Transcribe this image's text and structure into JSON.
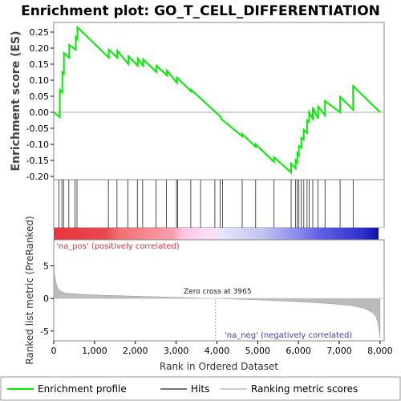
{
  "chart_data": {
    "type": "line",
    "title": "Enrichment plot: GO_T_CELL_DIFFERENTIATION",
    "top_panel": {
      "ylabel": "Enrichment score (ES)",
      "ylim": [
        -0.21,
        0.28
      ],
      "yticks": [
        "0.25",
        "0.20",
        "0.15",
        "0.10",
        "0.05",
        "0.00",
        "-0.05",
        "-0.10",
        "-0.15",
        "-0.20"
      ],
      "ytick_values": [
        0.25,
        0.2,
        0.15,
        0.1,
        0.05,
        0.0,
        -0.05,
        -0.1,
        -0.15,
        -0.2
      ],
      "xlim": [
        0,
        8100
      ],
      "series": [
        {
          "name": "Enrichment profile",
          "color": "#00ee00",
          "x": [
            0,
            150,
            150,
            210,
            210,
            250,
            250,
            380,
            380,
            540,
            540,
            580,
            580,
            1350,
            1350,
            1560,
            1560,
            1830,
            1830,
            2060,
            2060,
            2190,
            2190,
            2520,
            2520,
            2770,
            2770,
            3020,
            3020,
            3370,
            3370,
            4100,
            4100,
            4620,
            4620,
            4950,
            4950,
            5400,
            5400,
            5820,
            5820,
            5930,
            5930,
            5970,
            5970,
            6010,
            6010,
            6070,
            6070,
            6130,
            6130,
            6210,
            6210,
            6260,
            6260,
            6350,
            6350,
            6480,
            6480,
            6650,
            6650,
            7020,
            7020,
            7340,
            7340,
            8000
          ],
          "y": [
            0.0,
            -0.015,
            0.07,
            0.062,
            0.125,
            0.12,
            0.185,
            0.17,
            0.21,
            0.195,
            0.235,
            0.228,
            0.265,
            0.17,
            0.195,
            0.17,
            0.192,
            0.15,
            0.175,
            0.145,
            0.168,
            0.145,
            0.165,
            0.125,
            0.145,
            0.115,
            0.13,
            0.092,
            0.108,
            0.065,
            0.07,
            -0.015,
            -0.02,
            -0.075,
            -0.068,
            -0.108,
            -0.1,
            -0.155,
            -0.14,
            -0.188,
            -0.16,
            -0.175,
            -0.15,
            -0.158,
            -0.128,
            -0.135,
            -0.105,
            -0.11,
            -0.08,
            -0.085,
            -0.055,
            -0.065,
            -0.025,
            -0.03,
            0.0,
            -0.02,
            0.015,
            -0.02,
            0.018,
            -0.01,
            0.035,
            0.0,
            0.048,
            0.008,
            0.082,
            0.0
          ]
        }
      ]
    },
    "hits_panel": {
      "name": "Hits",
      "hit_positions": [
        130,
        200,
        240,
        370,
        520,
        570,
        1340,
        1550,
        1820,
        2050,
        2180,
        2510,
        2760,
        3010,
        3040,
        3360,
        3600,
        3950,
        4080,
        4140,
        4620,
        4950,
        5400,
        5820,
        5930,
        5970,
        6010,
        6070,
        6130,
        6210,
        6260,
        6350,
        6480,
        6650,
        7020,
        7340
      ]
    },
    "ranking_panel": {
      "ylabel": "Ranked list metric (PreRanked)",
      "xlabel": "Rank in Ordered Dataset",
      "ylim": [
        -6.5,
        9
      ],
      "yticks": [
        "5",
        "0",
        "-5"
      ],
      "ytick_values": [
        5,
        0,
        -5
      ],
      "xlim": [
        0,
        8100
      ],
      "xticks": [
        "0",
        "1,000",
        "2,000",
        "3,000",
        "4,000",
        "5,000",
        "6,000",
        "7,000",
        "8,000"
      ],
      "xtick_values": [
        0,
        1000,
        2000,
        3000,
        4000,
        5000,
        6000,
        7000,
        8000
      ],
      "zero_cross_label": "Zero cross at 3965",
      "zero_cross": 3965,
      "pos_label": "'na_pos' (positively correlated)",
      "neg_label": "'na_neg' (negatively correlated)",
      "metric_curve": {
        "x": [
          0,
          10,
          30,
          60,
          100,
          150,
          220,
          320,
          500,
          800,
          1200,
          2000,
          3000,
          3965,
          5000,
          6000,
          6800,
          7300,
          7600,
          7800,
          7900,
          7950,
          7980,
          8000
        ],
        "y": [
          7.0,
          5.0,
          3.3,
          2.3,
          1.6,
          1.2,
          0.95,
          0.8,
          0.7,
          0.6,
          0.5,
          0.35,
          0.18,
          0.0,
          -0.22,
          -0.5,
          -0.8,
          -1.1,
          -1.5,
          -2.1,
          -2.8,
          -3.8,
          -5.2,
          -6.2
        ]
      }
    },
    "legend": {
      "placement": "bottom",
      "items": [
        {
          "label": "Enrichment profile",
          "color": "#00ee00",
          "kind": "line"
        },
        {
          "label": "Hits",
          "color": "#000000",
          "kind": "line"
        },
        {
          "label": "Ranking metric scores",
          "color": "#cccccc",
          "kind": "line"
        }
      ]
    },
    "grid": false
  }
}
